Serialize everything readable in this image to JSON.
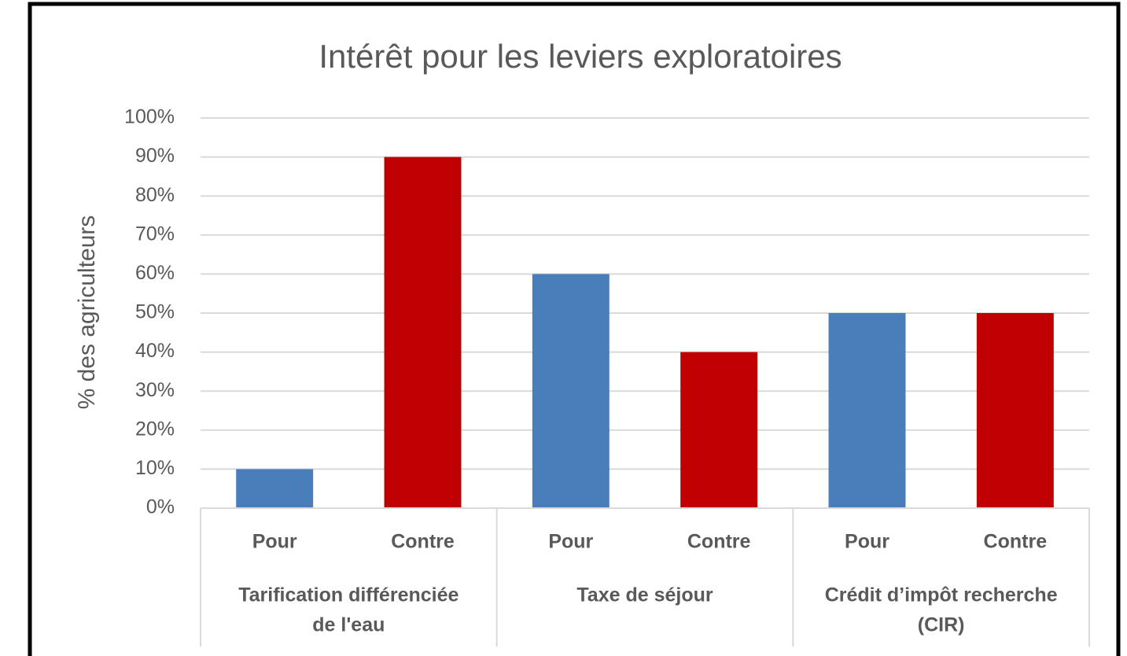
{
  "chart_data": {
    "type": "bar",
    "title": "Intérêt pour les leviers exploratoires",
    "y_label": "% des agriculteurs",
    "categories": [
      "Pour",
      "Contre",
      "Pour",
      "Contre",
      "Pour",
      "Contre"
    ],
    "groups": [
      [
        "Tarification différenciée",
        "de l'eau"
      ],
      [
        "Taxe de séjour"
      ],
      [
        "Crédit d’impôt recherche",
        "(CIR)"
      ]
    ],
    "values": [
      10,
      90,
      60,
      40,
      50,
      50
    ],
    "colors": [
      "#4a7ebb",
      "#c00000",
      "#4a7ebb",
      "#c00000",
      "#4a7ebb",
      "#c00000"
    ],
    "ylim": [
      0,
      100
    ],
    "yticks": [
      {
        "value": 0,
        "label": "0%"
      },
      {
        "value": 10,
        "label": "10%"
      },
      {
        "value": 20,
        "label": "20%"
      },
      {
        "value": 30,
        "label": "30%"
      },
      {
        "value": 40,
        "label": "40%"
      },
      {
        "value": 50,
        "label": "50%"
      },
      {
        "value": 60,
        "label": "60%"
      },
      {
        "value": 70,
        "label": "70%"
      },
      {
        "value": 80,
        "label": "80%"
      },
      {
        "value": 90,
        "label": "90%"
      },
      {
        "value": 100,
        "label": "100%"
      }
    ],
    "grid": true
  }
}
